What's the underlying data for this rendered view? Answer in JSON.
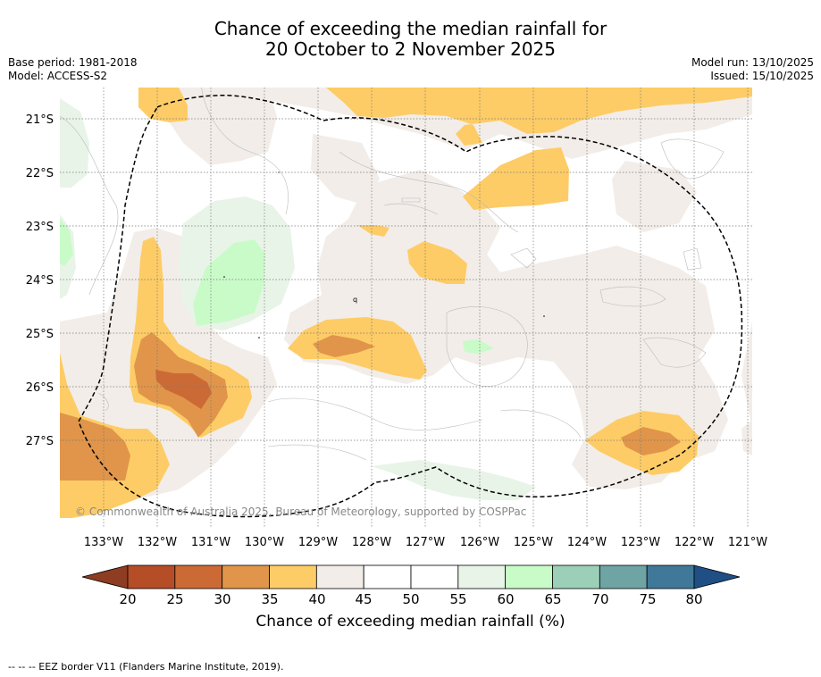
{
  "title": {
    "line1": "Chance of exceeding the median rainfall for",
    "line2": "20 October to 2 November 2025"
  },
  "meta": {
    "base_period": "Base period: 1981-2018",
    "model": "Model: ACCESS-S2",
    "model_run": "Model run: 13/10/2025",
    "issued": "Issued: 15/10/2025"
  },
  "map": {
    "lat_labels": [
      "21°S",
      "22°S",
      "23°S",
      "24°S",
      "25°S",
      "26°S",
      "27°S"
    ],
    "lon_labels": [
      "133°W",
      "132°W",
      "131°W",
      "130°W",
      "129°W",
      "128°W",
      "127°W",
      "126°W",
      "125°W",
      "124°W",
      "123°W",
      "122°W",
      "121°W"
    ],
    "copyright": "© Commonwealth of Australia 2025, Bureau of Meteorology, supported by COSPPac",
    "small_label": "q"
  },
  "colorbar": {
    "ticks": [
      "20",
      "25",
      "30",
      "35",
      "40",
      "45",
      "50",
      "55",
      "60",
      "65",
      "70",
      "75",
      "80"
    ],
    "colors": [
      "#b54d26",
      "#cc6a35",
      "#e0954a",
      "#fdcc66",
      "#f2ede8",
      "#ffffff",
      "#ffffff",
      "#e9f4e8",
      "#c9fbc9",
      "#9ccfb8",
      "#6fa4a4",
      "#3f7898"
    ],
    "under_color": "#8e3d22",
    "over_color": "#1f4f85",
    "label": "Chance of exceeding median rainfall (%)"
  },
  "footer": {
    "legend": "--  --  -- EEZ border V11 (Flanders Marine Institute, 2019)."
  }
}
